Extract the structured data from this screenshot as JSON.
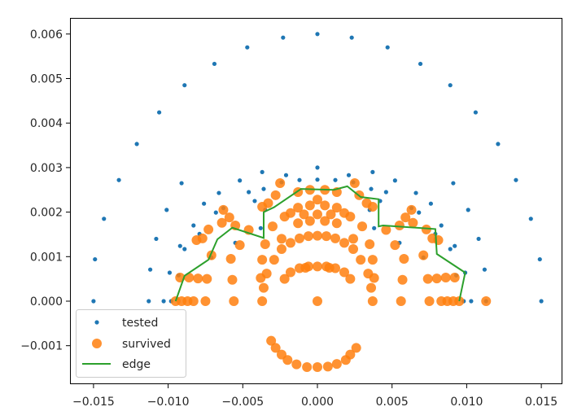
{
  "chart_data": {
    "type": "scatter",
    "title": "",
    "xlabel": "",
    "ylabel": "",
    "xlim": [
      -0.0165,
      0.0165
    ],
    "ylim": [
      -0.0019,
      0.0063
    ],
    "grid": false,
    "legend_position": "lower left",
    "xticks": [
      "-0.015",
      "-0.010",
      "-0.005",
      "0.000",
      "0.005",
      "0.010",
      "0.015"
    ],
    "xtick_values": [
      -0.015,
      -0.01,
      -0.005,
      0.0,
      0.005,
      0.01,
      0.015
    ],
    "yticks": [
      "-0.001",
      "0.000",
      "0.001",
      "0.002",
      "0.003",
      "0.004",
      "0.005",
      "0.006"
    ],
    "ytick_values": [
      -0.001,
      0.0,
      0.001,
      0.002,
      0.003,
      0.004,
      0.005,
      0.006
    ],
    "legend": [
      {
        "label": "tested",
        "marker": "small-dot",
        "color": "#1f77b4"
      },
      {
        "label": "survived",
        "marker": "large-dot",
        "color": "#ff7f0e"
      },
      {
        "label": "edge",
        "marker": "line",
        "color": "#2ca02c"
      }
    ],
    "series": [
      {
        "name": "tested",
        "color": "#1f77b4",
        "points": [
          [
            -0.015,
            0.0
          ],
          [
            -0.0149,
            0.00094
          ],
          [
            -0.0143,
            0.00185
          ],
          [
            -0.0133,
            0.00272
          ],
          [
            -0.0121,
            0.00353
          ],
          [
            -0.0106,
            0.00424
          ],
          [
            -0.0089,
            0.00485
          ],
          [
            -0.0069,
            0.00533
          ],
          [
            -0.0047,
            0.0057
          ],
          [
            -0.0023,
            0.00592
          ],
          [
            0.0,
            0.006
          ],
          [
            0.0023,
            0.00592
          ],
          [
            0.0047,
            0.0057
          ],
          [
            0.0069,
            0.00533
          ],
          [
            0.0089,
            0.00485
          ],
          [
            0.0106,
            0.00424
          ],
          [
            0.0121,
            0.00353
          ],
          [
            0.0133,
            0.00272
          ],
          [
            0.0143,
            0.00185
          ],
          [
            0.0149,
            0.00094
          ],
          [
            0.015,
            0.0
          ],
          [
            -0.0113,
            0.0
          ],
          [
            -0.0112,
            0.00071
          ],
          [
            -0.0108,
            0.0014
          ],
          [
            -0.0101,
            0.00205
          ],
          [
            -0.0091,
            0.00265
          ],
          [
            0.0091,
            0.00265
          ],
          [
            0.0101,
            0.00205
          ],
          [
            0.0108,
            0.0014
          ],
          [
            0.0112,
            0.00071
          ],
          [
            0.0113,
            0.0
          ],
          [
            -0.0103,
            0.0
          ],
          [
            -0.0099,
            0.00064
          ],
          [
            -0.0092,
            0.00124
          ],
          [
            -0.0083,
            0.0017
          ],
          [
            -0.0076,
            0.00219
          ],
          [
            -0.0066,
            0.00243
          ],
          [
            -0.0052,
            0.00271
          ],
          [
            -0.0037,
            0.0029
          ],
          [
            -0.0021,
            0.00283
          ],
          [
            0.0,
            0.003
          ],
          [
            0.0021,
            0.00283
          ],
          [
            0.0037,
            0.0029
          ],
          [
            0.0052,
            0.00271
          ],
          [
            0.0066,
            0.00243
          ],
          [
            0.0076,
            0.00219
          ],
          [
            0.0083,
            0.0017
          ],
          [
            0.0092,
            0.00124
          ],
          [
            0.0099,
            0.00064
          ],
          [
            0.0103,
            0.0
          ],
          [
            -0.0098,
            0.0
          ],
          [
            -0.0093,
            0.00058
          ],
          [
            -0.0089,
            0.00117
          ],
          [
            -0.0079,
            0.00151
          ],
          [
            -0.0068,
            0.00199
          ],
          [
            -0.0063,
            0.00209
          ],
          [
            -0.0046,
            0.00245
          ],
          [
            -0.0036,
            0.00252
          ],
          [
            -0.0024,
            0.00267
          ],
          [
            -0.0012,
            0.00272
          ],
          [
            0.0,
            0.00273
          ],
          [
            0.0012,
            0.00272
          ],
          [
            0.0024,
            0.00267
          ],
          [
            0.0036,
            0.00252
          ],
          [
            0.0046,
            0.00245
          ],
          [
            0.0063,
            0.00209
          ],
          [
            0.0068,
            0.00199
          ],
          [
            0.0079,
            0.00151
          ],
          [
            0.0089,
            0.00117
          ],
          [
            0.0093,
            0.00058
          ],
          [
            0.0098,
            0.0
          ],
          [
            -0.0071,
            0.00098
          ],
          [
            -0.0055,
            0.00131
          ],
          [
            -0.0038,
            0.00164
          ],
          [
            -0.0042,
            0.00225
          ],
          [
            -0.0035,
            0.00205
          ],
          [
            0.0035,
            0.00205
          ],
          [
            0.0042,
            0.00225
          ],
          [
            0.0038,
            0.00164
          ],
          [
            0.0055,
            0.00131
          ],
          [
            0.0071,
            0.00098
          ]
        ]
      },
      {
        "name": "survived",
        "color": "#ff7f0e",
        "points": [
          [
            -0.0095,
            0.0
          ],
          [
            -0.0091,
            0.0
          ],
          [
            -0.0087,
            0.0
          ],
          [
            -0.0083,
            0.0
          ],
          [
            -0.0075,
            0.0
          ],
          [
            -0.0056,
            0.0
          ],
          [
            -0.0037,
            0.0
          ],
          [
            0.0,
            0.0
          ],
          [
            0.0037,
            0.0
          ],
          [
            0.0056,
            0.0
          ],
          [
            0.0075,
            0.0
          ],
          [
            0.0083,
            0.0
          ],
          [
            0.0087,
            0.0
          ],
          [
            0.0091,
            0.0
          ],
          [
            0.0095,
            0.0
          ],
          [
            0.0113,
            0.0
          ],
          [
            -0.0092,
            0.00053
          ],
          [
            -0.0086,
            0.00053
          ],
          [
            -0.008,
            0.00051
          ],
          [
            -0.0074,
            0.0005
          ],
          [
            -0.0057,
            0.00048
          ],
          [
            -0.0058,
            0.00095
          ],
          [
            -0.0071,
            0.00103
          ],
          [
            -0.0077,
            0.00141
          ],
          [
            -0.0081,
            0.00137
          ],
          [
            -0.0073,
            0.00161
          ],
          [
            -0.0064,
            0.00176
          ],
          [
            -0.0052,
            0.00126
          ],
          [
            -0.0046,
            0.0016
          ],
          [
            -0.0063,
            0.00205
          ],
          [
            -0.0059,
            0.00188
          ],
          [
            -0.0055,
            0.0017
          ],
          [
            -0.0038,
            0.00052
          ],
          [
            -0.0037,
            0.00093
          ],
          [
            -0.0035,
            0.00128
          ],
          [
            -0.003,
            0.00168
          ],
          [
            -0.0024,
            0.0014
          ],
          [
            -0.0022,
            0.0019
          ],
          [
            -0.0018,
            0.00198
          ],
          [
            -0.0037,
            0.00212
          ],
          [
            -0.0033,
            0.0022
          ],
          [
            -0.0028,
            0.00238
          ],
          [
            -0.0025,
            0.00265
          ],
          [
            0.0092,
            0.00053
          ],
          [
            0.0086,
            0.00053
          ],
          [
            0.008,
            0.00051
          ],
          [
            0.0074,
            0.0005
          ],
          [
            0.0057,
            0.00048
          ],
          [
            0.0058,
            0.00095
          ],
          [
            0.0071,
            0.00103
          ],
          [
            0.0077,
            0.00141
          ],
          [
            0.0081,
            0.00137
          ],
          [
            0.0073,
            0.00161
          ],
          [
            0.0064,
            0.00176
          ],
          [
            0.0052,
            0.00126
          ],
          [
            0.0046,
            0.0016
          ],
          [
            0.0063,
            0.00205
          ],
          [
            0.0059,
            0.00188
          ],
          [
            0.0055,
            0.0017
          ],
          [
            0.0038,
            0.00052
          ],
          [
            0.0037,
            0.00093
          ],
          [
            0.0035,
            0.00128
          ],
          [
            0.003,
            0.00168
          ],
          [
            0.0024,
            0.0014
          ],
          [
            0.0022,
            0.0019
          ],
          [
            0.0018,
            0.00198
          ],
          [
            0.0037,
            0.00212
          ],
          [
            0.0033,
            0.0022
          ],
          [
            0.0028,
            0.00238
          ],
          [
            0.0025,
            0.00265
          ],
          [
            -0.0036,
            0.0003
          ],
          [
            -0.0034,
            0.00062
          ],
          [
            -0.0029,
            0.00093
          ],
          [
            -0.0024,
            0.00117
          ],
          [
            -0.0018,
            0.00131
          ],
          [
            -0.0012,
            0.00141
          ],
          [
            -0.0006,
            0.00146
          ],
          [
            0.0,
            0.00147
          ],
          [
            0.0006,
            0.00146
          ],
          [
            0.0012,
            0.00141
          ],
          [
            0.0018,
            0.00131
          ],
          [
            0.0024,
            0.00117
          ],
          [
            0.0029,
            0.00093
          ],
          [
            0.0034,
            0.00062
          ],
          [
            0.0036,
            0.0003
          ],
          [
            -0.0013,
            0.00175
          ],
          [
            -0.0013,
            0.0021
          ],
          [
            -0.0013,
            0.00245
          ],
          [
            -0.0005,
            0.0018
          ],
          [
            -0.0005,
            0.00215
          ],
          [
            -0.0005,
            0.0025
          ],
          [
            0.0005,
            0.0018
          ],
          [
            0.0005,
            0.00215
          ],
          [
            0.0005,
            0.0025
          ],
          [
            0.0013,
            0.00175
          ],
          [
            0.0013,
            0.0021
          ],
          [
            0.0013,
            0.00245
          ],
          [
            -0.0009,
            0.00195
          ],
          [
            0.0009,
            0.00195
          ],
          [
            0.0,
            0.00195
          ],
          [
            0.0,
            0.00228
          ],
          [
            -0.0022,
            0.0005
          ],
          [
            -0.0018,
            0.00065
          ],
          [
            -0.0012,
            0.00074
          ],
          [
            -0.0006,
            0.00078
          ],
          [
            0.0,
            0.00078
          ],
          [
            0.0006,
            0.00078
          ],
          [
            0.0012,
            0.00074
          ],
          [
            0.0018,
            0.00065
          ],
          [
            0.0022,
            0.0005
          ],
          [
            -0.0008,
            0.00075
          ],
          [
            0.0008,
            0.00075
          ],
          [
            -0.0031,
            -0.00089
          ],
          [
            -0.0028,
            -0.00105
          ],
          [
            -0.0024,
            -0.0012
          ],
          [
            -0.002,
            -0.00132
          ],
          [
            -0.0014,
            -0.00142
          ],
          [
            -0.0007,
            -0.00148
          ],
          [
            0.0,
            -0.00148
          ],
          [
            0.0007,
            -0.00147
          ],
          [
            0.0013,
            -0.00141
          ],
          [
            0.0019,
            -0.00132
          ],
          [
            0.0022,
            -0.0012
          ],
          [
            0.0026,
            -0.00105
          ]
        ]
      },
      {
        "name": "edge",
        "color": "#2ca02c",
        "points": [
          [
            -0.0095,
            0.0
          ],
          [
            -0.0089,
            0.00057
          ],
          [
            -0.0073,
            0.00093
          ],
          [
            -0.0067,
            0.00139
          ],
          [
            -0.0057,
            0.00165
          ],
          [
            -0.0036,
            0.00142
          ],
          [
            -0.0036,
            0.002
          ],
          [
            -0.0029,
            0.00211
          ],
          [
            -0.0011,
            0.00252
          ],
          [
            0.0011,
            0.0025
          ],
          [
            0.002,
            0.00258
          ],
          [
            0.0029,
            0.00234
          ],
          [
            0.0041,
            0.00229
          ],
          [
            0.0041,
            0.00168
          ],
          [
            0.0044,
            0.0017
          ],
          [
            0.0079,
            0.00162
          ],
          [
            0.008,
            0.00106
          ],
          [
            0.0099,
            0.00064
          ],
          [
            0.0095,
            0.0
          ]
        ]
      }
    ]
  }
}
